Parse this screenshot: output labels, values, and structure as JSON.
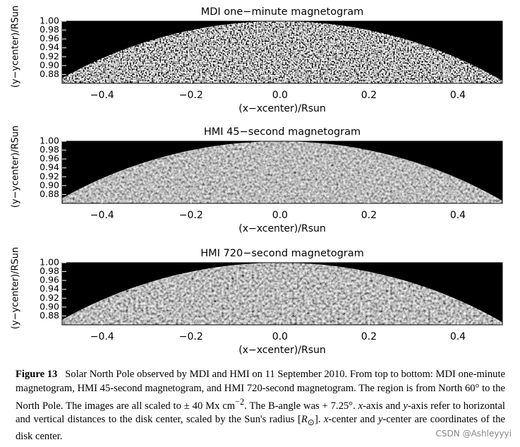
{
  "chart_data": [
    {
      "type": "image",
      "title": "MDI one−minute magnetogram",
      "x_label": "(x−xcenter)/Rsun",
      "y_label": "(y−ycenter)/RSun",
      "xlim": [
        -0.49,
        0.5
      ],
      "ylim": [
        0.86,
        1.0
      ],
      "xticks": [
        {
          "value": -0.4,
          "label": "−0.4"
        },
        {
          "value": -0.2,
          "label": "−0.2"
        },
        {
          "value": 0,
          "label": "0.0"
        },
        0.2,
        0.4
      ],
      "yticks": [
        0.88,
        {
          "value": 0.9,
          "label": "0.90"
        },
        0.92,
        0.94,
        0.96,
        0.98,
        {
          "value": 1,
          "label": "1.00"
        }
      ]
    },
    {
      "type": "image",
      "title": "HMI 45−second magnetogram",
      "x_label": "(x−xcenter)/Rsun",
      "y_label": "(y−ycenter)/RSun",
      "xlim": [
        -0.49,
        0.5
      ],
      "ylim": [
        0.86,
        1.0
      ],
      "xticks": [
        {
          "value": -0.4,
          "label": "−0.4"
        },
        {
          "value": -0.2,
          "label": "−0.2"
        },
        {
          "value": 0,
          "label": "0.0"
        },
        0.2,
        0.4
      ],
      "yticks": [
        0.88,
        {
          "value": 0.9,
          "label": "0.90"
        },
        0.92,
        0.94,
        0.96,
        0.98,
        {
          "value": 1,
          "label": "1.00"
        }
      ]
    },
    {
      "type": "image",
      "title": "HMI 720−second magnetogram",
      "x_label": "(x−xcenter)/Rsun",
      "y_label": "(y−ycenter)/RSun",
      "xlim": [
        -0.49,
        0.5
      ],
      "ylim": [
        0.86,
        1.0
      ],
      "xticks": [
        {
          "value": -0.4,
          "label": "−0.4"
        },
        {
          "value": -0.2,
          "label": "−0.2"
        },
        {
          "value": 0,
          "label": "0.0"
        },
        0.2,
        0.4
      ],
      "yticks": [
        0.88,
        {
          "value": 0.9,
          "label": "0.90"
        },
        0.92,
        0.94,
        0.96,
        0.98,
        {
          "value": 1,
          "label": "1.00"
        }
      ]
    }
  ],
  "caption": {
    "label": "Figure 13",
    "parts": [
      "Solar North Pole observed by MDI and HMI on 11 September 2010. From top to bottom: MDI one-minute magnetogram, HMI 45-second magnetogram, and HMI 720-second magnetogram. The region is from North 60° to the North Pole. The images are all scaled to ± 40 Mx cm",
      "−2",
      ". The B-angle was + 7.25°. ",
      "x",
      "-axis and ",
      "y",
      "-axis refer to horizontal and vertical distances to the disk center, scaled by the Sun's radius [",
      "R",
      "⊙",
      "]. ",
      "x",
      "-center and ",
      "y",
      "-center are coordinates of the disk center."
    ]
  },
  "watermark": "CSDN @Ashleyyyi"
}
